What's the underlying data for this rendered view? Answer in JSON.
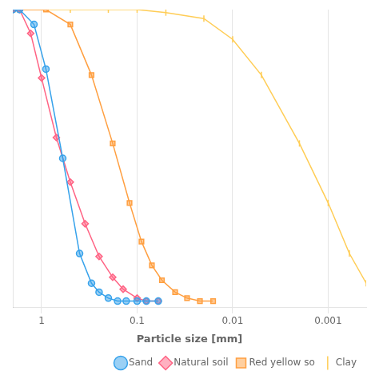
{
  "chart_data": {
    "type": "line",
    "xlabel": "Particle size [mm]",
    "log": "x",
    "xlim": [
      2.0,
      0.0004
    ],
    "xticks": [
      1,
      0.1,
      0.01,
      0.001
    ],
    "ylim": [
      0,
      100
    ],
    "yticks": [],
    "tick_labels": "x",
    "grid": true,
    "legend": "lower right",
    "series": [
      {
        "name": "Sand",
        "marker": "circle",
        "x": [
          2.0,
          1.7,
          1.2,
          0.9,
          0.6,
          0.4,
          0.3,
          0.25,
          0.2,
          0.16,
          0.13,
          0.1,
          0.08,
          0.06
        ],
        "values": [
          100,
          100,
          95,
          80,
          50,
          18,
          8,
          5,
          3,
          2,
          2,
          2,
          2,
          2
        ]
      },
      {
        "name": "Natural soil",
        "marker": "diamond",
        "x": [
          2.0,
          1.7,
          1.3,
          1.0,
          0.7,
          0.5,
          0.35,
          0.25,
          0.18,
          0.14,
          0.1,
          0.08,
          0.06
        ],
        "values": [
          100,
          100,
          92,
          77,
          57,
          42,
          28,
          17,
          10,
          6,
          3,
          2,
          2
        ]
      },
      {
        "name": "Red yellow so",
        "marker": "square",
        "x": [
          2.0,
          1.7,
          0.9,
          0.5,
          0.3,
          0.18,
          0.12,
          0.09,
          0.07,
          0.055,
          0.04,
          0.03,
          0.022,
          0.016
        ],
        "values": [
          100,
          100,
          100,
          95,
          78,
          55,
          35,
          22,
          14,
          9,
          5,
          3,
          2,
          2
        ]
      },
      {
        "name": "Clay",
        "marker": "vline",
        "x": [
          2.0,
          0.5,
          0.2,
          0.1,
          0.05,
          0.02,
          0.01,
          0.005,
          0.002,
          0.001,
          0.0006,
          0.0004
        ],
        "values": [
          100,
          100,
          100,
          100,
          99,
          97,
          90,
          78,
          55,
          35,
          18,
          8
        ]
      }
    ]
  }
}
